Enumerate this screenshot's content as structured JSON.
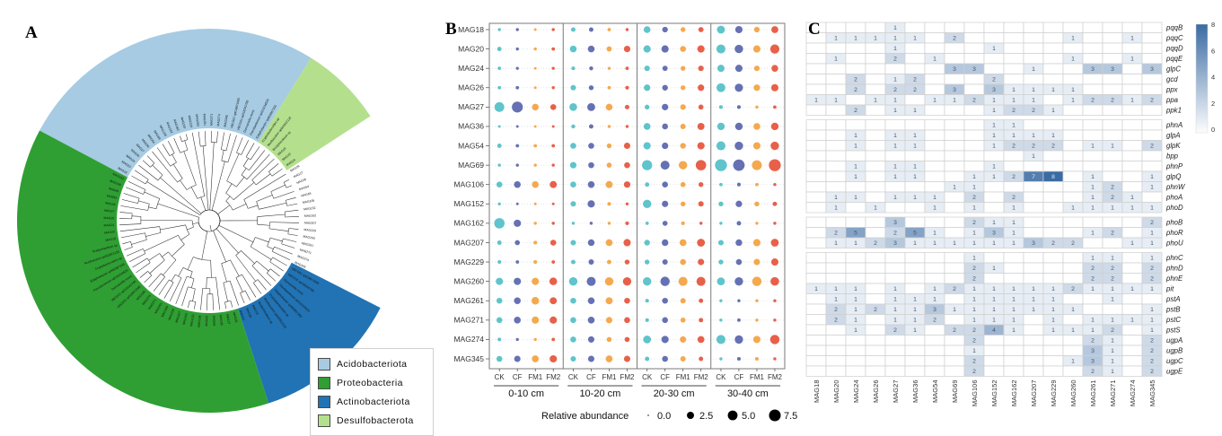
{
  "figure_labels": {
    "a": "A",
    "b": "B",
    "c": "C"
  },
  "panel_a": {
    "legend": [
      {
        "label": "Acidobacteriota",
        "color": "#a6cbe3"
      },
      {
        "label": "Proteobacteria",
        "color": "#2f9f33"
      },
      {
        "label": "Actinobacteriota",
        "color": "#2173b4"
      },
      {
        "label": "Desulfobacterota",
        "color": "#b4e08e"
      }
    ],
    "sectors": [
      {
        "name": "Acidobacteriota",
        "color": "#a6cbe3",
        "a1": -62,
        "a2": 32
      },
      {
        "name": "Desulfobacterota",
        "color": "#b4e08e",
        "a1": 32,
        "a2": 57
      },
      {
        "name": "Actinobacteriota",
        "color": "#2173b4",
        "a1": 117,
        "a2": 162
      },
      {
        "name": "Proteobacteria",
        "color": "#2f9f33",
        "a1": 162,
        "a2": 298
      }
    ],
    "tip_labels_sample": [
      "MAG18",
      "MAG20",
      "MAG24",
      "MAG26",
      "MAG27",
      "MAG36",
      "MAG54",
      "MAG69",
      "MAG106",
      "MAG152",
      "MAG162",
      "MAG207",
      "MAG229",
      "MAG260",
      "MAG261",
      "MAG271",
      "MAG274",
      "MAG345",
      "VBCG01 sp018971095",
      "VBCG01 sp018241785",
      "Duncaniella muris",
      "Flavobacterium sp015234525",
      "Edaphobacter sp902867205",
      "Cryptobacteroides sp",
      "Muribaculum sp002812125",
      "Bradyrhizobium sp"
    ]
  },
  "chart_data": [
    {
      "type": "scatter",
      "name": "relative-abundance-bubble-plot",
      "rows": [
        "MAG18",
        "MAG20",
        "MAG24",
        "MAG26",
        "MAG27",
        "MAG36",
        "MAG54",
        "MAG69",
        "MAG106",
        "MAG152",
        "MAG162",
        "MAG207",
        "MAG229",
        "MAG260",
        "MAG261",
        "MAG271",
        "MAG274",
        "MAG345"
      ],
      "groups": [
        "0-10 cm",
        "10-20 cm",
        "20-30 cm",
        "30-40 cm"
      ],
      "treatments": [
        "CK",
        "CF",
        "FM1",
        "FM2"
      ],
      "treatment_colors": {
        "CK": "#5fc4cb",
        "CF": "#6571b3",
        "FM1": "#f4a94e",
        "FM2": "#e8604a"
      },
      "size_legend": {
        "title": "Relative abundance",
        "sizes": [
          0.0,
          2.5,
          5.0,
          7.5
        ]
      },
      "values": [
        [
          0.3,
          0.3,
          0.2,
          0.3,
          0.8,
          0.8,
          0.4,
          0.3,
          2.2,
          1.4,
          1.0,
          1.2,
          3.2,
          2.6,
          1.4,
          2.4
        ],
        [
          0.8,
          0.3,
          0.3,
          0.4,
          2.2,
          2.2,
          1.2,
          2.0,
          2.6,
          2.6,
          1.6,
          2.6,
          4.2,
          3.6,
          2.6,
          4.4
        ],
        [
          0.4,
          0.3,
          0.2,
          0.3,
          0.5,
          0.6,
          0.3,
          0.4,
          1.4,
          1.2,
          1.0,
          1.4,
          2.6,
          2.6,
          1.4,
          2.2
        ],
        [
          0.4,
          0.4,
          0.2,
          0.3,
          1.3,
          1.0,
          0.4,
          0.5,
          2.0,
          1.5,
          1.0,
          2.0,
          4.0,
          3.4,
          2.0,
          2.6
        ],
        [
          5.0,
          6.5,
          2.2,
          1.6,
          3.0,
          3.2,
          2.2,
          0.8,
          1.0,
          2.0,
          1.4,
          1.1,
          0.5,
          0.5,
          0.3,
          0.4
        ],
        [
          0.2,
          0.2,
          0.2,
          0.2,
          0.6,
          0.8,
          0.3,
          0.3,
          2.2,
          1.6,
          1.3,
          2.4,
          2.8,
          2.8,
          2.2,
          2.8
        ],
        [
          0.8,
          0.4,
          0.4,
          0.4,
          1.6,
          1.6,
          1.0,
          1.9,
          2.6,
          2.0,
          1.5,
          2.6,
          4.2,
          3.6,
          2.6,
          3.6
        ],
        [
          0.3,
          0.3,
          0.3,
          0.3,
          2.0,
          1.6,
          1.1,
          1.6,
          5.5,
          4.2,
          3.6,
          5.8,
          7.8,
          7.2,
          5.2,
          7.8
        ],
        [
          1.6,
          2.2,
          2.2,
          2.4,
          1.6,
          2.2,
          2.4,
          2.0,
          0.8,
          1.6,
          1.1,
          1.0,
          0.4,
          0.5,
          0.4,
          0.3
        ],
        [
          0.3,
          0.2,
          0.2,
          0.2,
          1.3,
          2.6,
          0.5,
          0.3,
          3.6,
          1.9,
          1.0,
          1.3,
          1.0,
          2.0,
          1.0,
          0.8
        ],
        [
          5.8,
          2.6,
          0.3,
          0.3,
          0.3,
          0.3,
          0.3,
          0.5,
          0.4,
          1.1,
          0.5,
          0.3,
          0.3,
          0.8,
          0.3,
          0.3
        ],
        [
          0.8,
          1.1,
          0.5,
          1.6,
          1.3,
          2.1,
          2.3,
          2.6,
          1.5,
          2.1,
          2.3,
          3.1,
          1.3,
          2.1,
          2.6,
          3.1
        ],
        [
          0.5,
          0.4,
          0.5,
          0.4,
          0.8,
          1.3,
          0.8,
          1.0,
          1.0,
          1.3,
          1.6,
          1.9,
          1.0,
          1.6,
          1.9,
          2.6
        ],
        [
          2.6,
          2.6,
          2.6,
          2.9,
          3.6,
          4.2,
          3.6,
          3.6,
          3.6,
          4.6,
          4.2,
          4.2,
          3.1,
          3.6,
          4.6,
          3.8
        ],
        [
          1.6,
          2.2,
          2.9,
          2.4,
          1.6,
          2.2,
          2.4,
          1.6,
          0.5,
          1.6,
          1.3,
          0.8,
          0.3,
          0.3,
          0.3,
          0.3
        ],
        [
          1.6,
          2.2,
          2.6,
          2.6,
          1.6,
          2.2,
          1.9,
          1.6,
          0.5,
          1.6,
          1.1,
          0.8,
          0.3,
          0.4,
          0.3,
          0.3
        ],
        [
          0.5,
          0.3,
          0.3,
          0.4,
          1.6,
          1.9,
          1.1,
          1.1,
          3.1,
          2.6,
          1.9,
          2.3,
          4.2,
          3.6,
          2.6,
          4.6
        ],
        [
          1.6,
          1.9,
          2.3,
          2.6,
          1.3,
          1.9,
          2.3,
          1.9,
          0.8,
          1.6,
          1.3,
          0.8,
          0.3,
          0.5,
          0.5,
          0.3
        ]
      ]
    },
    {
      "type": "heatmap",
      "name": "phosphorus-gene-heatmap",
      "columns": [
        "MAG18",
        "MAG20",
        "MAG24",
        "MAG26",
        "MAG27",
        "MAG36",
        "MAG54",
        "MAG69",
        "MAG106",
        "MAG152",
        "MAG162",
        "MAG207",
        "MAG229",
        "MAG260",
        "MAG261",
        "MAG271",
        "MAG274",
        "MAG345"
      ],
      "gene_groups": [
        [
          "pqqB",
          "pqqC",
          "pqqD",
          "pqqE",
          "glpC",
          "gcd",
          "ppx",
          "ppa",
          "ppk1"
        ],
        [
          "phnA",
          "glpA",
          "glpK",
          "bpp",
          "phnP",
          "glpQ",
          "phnW",
          "phoA",
          "phoD"
        ],
        [
          "phoB",
          "phoR",
          "phoU"
        ],
        [
          "phnC",
          "phnD",
          "phnE",
          "pit",
          "pstA",
          "pstB",
          "pstC",
          "pstS",
          "ugpA",
          "ugpB",
          "ugpC",
          "ugpE"
        ]
      ],
      "matrix": [
        [
          0,
          0,
          0,
          0,
          1,
          0,
          0,
          0,
          0,
          0,
          0,
          0,
          0,
          0,
          0,
          0,
          0,
          0
        ],
        [
          0,
          1,
          1,
          1,
          1,
          1,
          0,
          2,
          0,
          0,
          0,
          0,
          0,
          1,
          0,
          0,
          1,
          0
        ],
        [
          0,
          0,
          0,
          0,
          1,
          0,
          0,
          0,
          0,
          1,
          0,
          0,
          0,
          0,
          0,
          0,
          0,
          0
        ],
        [
          0,
          1,
          0,
          0,
          2,
          0,
          1,
          0,
          0,
          0,
          0,
          0,
          0,
          1,
          0,
          0,
          1,
          0
        ],
        [
          0,
          0,
          0,
          0,
          0,
          0,
          0,
          3,
          3,
          0,
          0,
          1,
          0,
          0,
          3,
          3,
          0,
          3
        ],
        [
          0,
          0,
          2,
          0,
          1,
          2,
          0,
          0,
          0,
          2,
          0,
          0,
          0,
          0,
          0,
          0,
          0,
          0
        ],
        [
          0,
          0,
          2,
          0,
          2,
          2,
          0,
          3,
          0,
          3,
          1,
          1,
          1,
          1,
          0,
          0,
          0,
          0
        ],
        [
          1,
          1,
          0,
          1,
          1,
          0,
          1,
          1,
          2,
          1,
          1,
          1,
          0,
          1,
          2,
          2,
          1,
          2
        ],
        [
          0,
          0,
          2,
          0,
          1,
          1,
          0,
          0,
          0,
          1,
          2,
          2,
          1,
          0,
          0,
          0,
          0,
          0
        ],
        [
          0,
          0,
          0,
          0,
          0,
          0,
          0,
          0,
          0,
          1,
          1,
          0,
          0,
          0,
          0,
          0,
          0,
          0
        ],
        [
          0,
          0,
          1,
          0,
          1,
          1,
          0,
          0,
          0,
          1,
          1,
          1,
          1,
          0,
          0,
          0,
          0,
          0
        ],
        [
          0,
          0,
          1,
          0,
          1,
          1,
          0,
          0,
          0,
          1,
          2,
          2,
          2,
          0,
          1,
          1,
          0,
          2
        ],
        [
          0,
          0,
          0,
          0,
          0,
          0,
          0,
          0,
          0,
          0,
          0,
          1,
          0,
          0,
          0,
          0,
          0,
          0
        ],
        [
          0,
          0,
          1,
          0,
          1,
          1,
          0,
          0,
          0,
          1,
          0,
          0,
          0,
          0,
          0,
          0,
          0,
          0
        ],
        [
          0,
          0,
          1,
          0,
          1,
          1,
          0,
          0,
          1,
          1,
          2,
          7,
          8,
          0,
          1,
          0,
          0,
          1
        ],
        [
          0,
          0,
          0,
          0,
          0,
          0,
          0,
          1,
          1,
          0,
          0,
          0,
          0,
          0,
          1,
          2,
          0,
          1
        ],
        [
          0,
          1,
          1,
          0,
          1,
          1,
          1,
          0,
          2,
          0,
          2,
          0,
          0,
          0,
          1,
          2,
          1,
          0
        ],
        [
          0,
          1,
          0,
          1,
          0,
          0,
          1,
          0,
          1,
          0,
          1,
          0,
          0,
          1,
          1,
          1,
          1,
          1
        ],
        [
          0,
          0,
          0,
          0,
          3,
          0,
          0,
          0,
          2,
          1,
          1,
          0,
          0,
          0,
          0,
          0,
          0,
          2
        ],
        [
          0,
          2,
          5,
          0,
          2,
          5,
          1,
          0,
          1,
          3,
          1,
          0,
          0,
          0,
          1,
          2,
          0,
          1
        ],
        [
          0,
          1,
          1,
          2,
          3,
          1,
          1,
          1,
          1,
          1,
          1,
          3,
          2,
          2,
          0,
          0,
          1,
          1
        ],
        [
          0,
          0,
          0,
          0,
          0,
          0,
          0,
          0,
          1,
          0,
          0,
          0,
          0,
          0,
          1,
          1,
          0,
          1
        ],
        [
          0,
          0,
          0,
          0,
          0,
          0,
          0,
          0,
          2,
          1,
          0,
          0,
          0,
          0,
          2,
          2,
          0,
          2
        ],
        [
          0,
          0,
          0,
          0,
          0,
          0,
          0,
          0,
          2,
          0,
          0,
          0,
          0,
          0,
          2,
          2,
          0,
          2
        ],
        [
          1,
          1,
          1,
          0,
          1,
          0,
          1,
          2,
          1,
          1,
          1,
          1,
          1,
          2,
          1,
          1,
          1,
          1
        ],
        [
          0,
          1,
          1,
          0,
          1,
          1,
          1,
          0,
          1,
          1,
          1,
          1,
          1,
          0,
          0,
          1,
          0,
          0
        ],
        [
          0,
          2,
          1,
          2,
          1,
          1,
          3,
          1,
          1,
          1,
          1,
          1,
          1,
          1,
          0,
          0,
          0,
          1
        ],
        [
          0,
          2,
          1,
          0,
          1,
          1,
          2,
          0,
          1,
          1,
          1,
          0,
          1,
          0,
          1,
          1,
          1,
          1
        ],
        [
          0,
          0,
          1,
          0,
          2,
          1,
          0,
          2,
          2,
          4,
          1,
          0,
          1,
          1,
          1,
          2,
          0,
          1
        ],
        [
          0,
          0,
          0,
          0,
          0,
          0,
          0,
          0,
          2,
          0,
          0,
          0,
          0,
          0,
          2,
          1,
          0,
          2
        ],
        [
          0,
          0,
          0,
          0,
          0,
          0,
          0,
          0,
          1,
          0,
          0,
          0,
          0,
          0,
          3,
          1,
          0,
          2
        ],
        [
          0,
          0,
          0,
          0,
          0,
          0,
          0,
          0,
          2,
          0,
          0,
          0,
          0,
          1,
          3,
          1,
          0,
          2
        ],
        [
          0,
          0,
          0,
          0,
          0,
          0,
          0,
          0,
          2,
          0,
          0,
          0,
          0,
          0,
          2,
          1,
          0,
          2
        ]
      ],
      "colorbar": {
        "min": 0,
        "max": 8,
        "ticks": [
          8,
          6,
          4,
          2,
          0
        ],
        "high_color": "#3a6ba3"
      }
    }
  ]
}
